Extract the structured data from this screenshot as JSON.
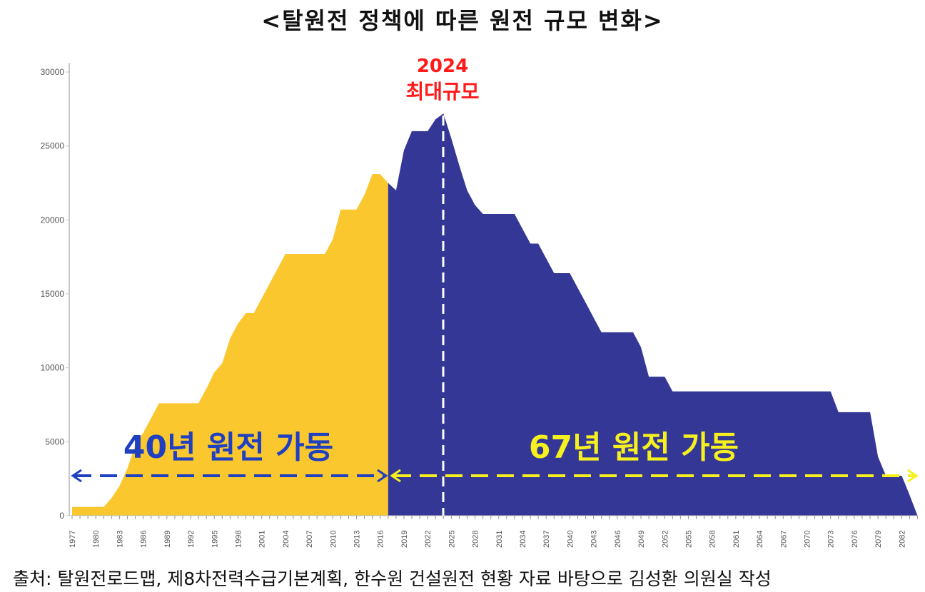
{
  "chart_data": {
    "type": "area",
    "title": "<탈원전 정책에 따른 원전 규모 변화>",
    "xlabel": "",
    "ylabel": "",
    "ylim": [
      0,
      30000
    ],
    "yticks": [
      0,
      5000,
      10000,
      15000,
      20000,
      25000,
      30000
    ],
    "xlim": [
      1977,
      2084
    ],
    "xtick_start": 1977,
    "xtick_end": 2082,
    "xtick_step": 3,
    "grid": false,
    "series": [
      {
        "name": "40년 원전 가동",
        "color": "#fbc72e",
        "x": [
          1977,
          1978,
          1979,
          1980,
          1981,
          1982,
          1983,
          1984,
          1985,
          1986,
          1987,
          1988,
          1989,
          1990,
          1991,
          1992,
          1993,
          1994,
          1995,
          1996,
          1997,
          1998,
          1999,
          2000,
          2001,
          2002,
          2003,
          2004,
          2005,
          2006,
          2007,
          2008,
          2009,
          2010,
          2011,
          2012,
          2013,
          2014,
          2015,
          2016,
          2017
        ],
        "values": [
          587,
          587,
          587,
          587,
          587,
          1200,
          2000,
          3200,
          4800,
          5600,
          6600,
          7600,
          7600,
          7600,
          7600,
          7600,
          7600,
          8600,
          9700,
          10300,
          12000,
          13000,
          13700,
          13700,
          14700,
          15700,
          16700,
          17700,
          17700,
          17700,
          17700,
          17700,
          17700,
          18700,
          20700,
          20700,
          20700,
          21700,
          23100,
          23100,
          22500
        ]
      },
      {
        "name": "67년 원전 가동",
        "color": "#343795",
        "x": [
          2017,
          2018,
          2019,
          2020,
          2021,
          2022,
          2023,
          2024,
          2025,
          2026,
          2027,
          2028,
          2029,
          2030,
          2031,
          2032,
          2033,
          2034,
          2035,
          2036,
          2037,
          2038,
          2039,
          2040,
          2041,
          2042,
          2043,
          2044,
          2045,
          2046,
          2047,
          2048,
          2049,
          2050,
          2051,
          2052,
          2053,
          2054,
          2055,
          2056,
          2057,
          2058,
          2059,
          2060,
          2061,
          2062,
          2063,
          2064,
          2065,
          2066,
          2067,
          2068,
          2069,
          2070,
          2071,
          2072,
          2073,
          2074,
          2075,
          2076,
          2077,
          2078,
          2079,
          2080,
          2081,
          2082,
          2083,
          2084
        ],
        "values": [
          22500,
          22000,
          24700,
          26000,
          26000,
          26000,
          26800,
          27200,
          25500,
          23700,
          22000,
          21000,
          20400,
          20400,
          20400,
          20400,
          20400,
          19400,
          18400,
          18400,
          17400,
          16400,
          16400,
          16400,
          15400,
          14400,
          13400,
          12400,
          12400,
          12400,
          12400,
          12400,
          11400,
          9400,
          9400,
          9400,
          8400,
          8400,
          8400,
          8400,
          8400,
          8400,
          8400,
          8400,
          8400,
          8400,
          8400,
          8400,
          8400,
          8400,
          8400,
          8400,
          8400,
          8400,
          8400,
          8400,
          8400,
          7000,
          7000,
          7000,
          7000,
          7000,
          4000,
          2700,
          2700,
          2700,
          1400,
          0
        ]
      }
    ],
    "annotations": {
      "peak_year": "2024",
      "peak_label": "최대규모",
      "peak_color": "#ff1a1a",
      "left_label": "40년 원전 가동",
      "left_color": "#1f40c0",
      "right_label": "67년 원전 가동",
      "right_color": "#f5f01e"
    },
    "source": "출처: 탈원전로드맵, 제8차전력수급기본계획, 한수원 건설원전 현황 자료 바탕으로 김성환 의원실 작성"
  }
}
